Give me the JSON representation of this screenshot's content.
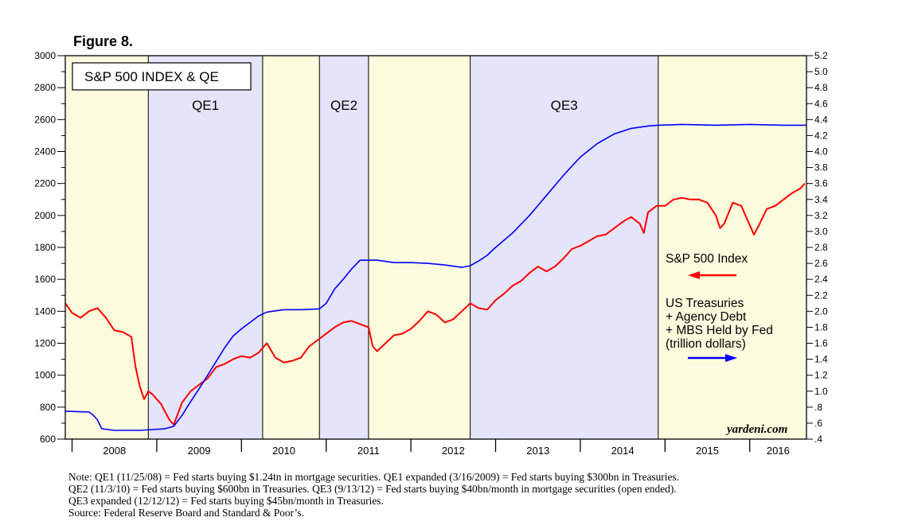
{
  "figure_label": "Figure 8.",
  "chart_data": {
    "type": "line",
    "title": "S&P 500 INDEX & QE",
    "x_range": [
      2007.92,
      2016.67
    ],
    "x_tick_labels": [
      "2008",
      "2009",
      "2010",
      "2011",
      "2012",
      "2013",
      "2014",
      "2015",
      "2016"
    ],
    "left_axis": {
      "min": 600,
      "max": 3000,
      "ticks": [
        "600",
        "800",
        "1000",
        "1200",
        "1400",
        "1600",
        "1800",
        "2000",
        "2200",
        "2400",
        "2600",
        "2800",
        "3000"
      ]
    },
    "right_axis": {
      "min": 0.4,
      "max": 5.2,
      "ticks": [
        ".4",
        ".6",
        ".8",
        "1.0",
        "1.2",
        "1.4",
        "1.6",
        "1.8",
        "2.0",
        "2.2",
        "2.4",
        "2.6",
        "2.8",
        "3.0",
        "3.2",
        "3.4",
        "3.6",
        "3.8",
        "4.0",
        "4.2",
        "4.4",
        "4.6",
        "4.8",
        "5.0",
        "5.2"
      ]
    },
    "periods": [
      {
        "label": "",
        "start": 2007.92,
        "end": 2008.9,
        "fill": "#fdfbdd"
      },
      {
        "label": "QE1",
        "start": 2008.9,
        "end": 2010.25,
        "fill": "#e4e4fa"
      },
      {
        "label": "",
        "start": 2010.25,
        "end": 2010.92,
        "fill": "#fdfbdd"
      },
      {
        "label": "QE2",
        "start": 2010.92,
        "end": 2011.5,
        "fill": "#e4e4fa"
      },
      {
        "label": "",
        "start": 2011.5,
        "end": 2012.7,
        "fill": "#fdfbdd"
      },
      {
        "label": "QE3",
        "start": 2012.7,
        "end": 2014.92,
        "fill": "#e4e4fa"
      },
      {
        "label": "",
        "start": 2014.92,
        "end": 2016.67,
        "fill": "#fdfbdd"
      }
    ],
    "series": [
      {
        "name": "S&P 500 Index",
        "axis": "left",
        "color": "#ff0000",
        "x": [
          2007.92,
          2008.0,
          2008.1,
          2008.2,
          2008.3,
          2008.4,
          2008.5,
          2008.6,
          2008.7,
          2008.75,
          2008.8,
          2008.85,
          2008.9,
          2008.95,
          2009.05,
          2009.15,
          2009.2,
          2009.3,
          2009.4,
          2009.5,
          2009.6,
          2009.7,
          2009.8,
          2009.9,
          2010.0,
          2010.1,
          2010.2,
          2010.3,
          2010.4,
          2010.5,
          2010.6,
          2010.7,
          2010.8,
          2010.9,
          2011.0,
          2011.1,
          2011.2,
          2011.3,
          2011.4,
          2011.5,
          2011.55,
          2011.6,
          2011.7,
          2011.8,
          2011.9,
          2012.0,
          2012.1,
          2012.2,
          2012.3,
          2012.4,
          2012.5,
          2012.6,
          2012.7,
          2012.8,
          2012.9,
          2013.0,
          2013.1,
          2013.2,
          2013.3,
          2013.4,
          2013.5,
          2013.6,
          2013.7,
          2013.8,
          2013.9,
          2014.0,
          2014.1,
          2014.2,
          2014.3,
          2014.4,
          2014.5,
          2014.6,
          2014.7,
          2014.75,
          2014.8,
          2014.9,
          2015.0,
          2015.1,
          2015.2,
          2015.3,
          2015.4,
          2015.5,
          2015.6,
          2015.65,
          2015.7,
          2015.8,
          2015.9,
          2016.0,
          2016.05,
          2016.1,
          2016.2,
          2016.3,
          2016.4,
          2016.5,
          2016.6,
          2016.65
        ],
        "values": [
          1450,
          1390,
          1360,
          1400,
          1420,
          1360,
          1280,
          1270,
          1240,
          1050,
          930,
          850,
          900,
          880,
          820,
          720,
          690,
          830,
          900,
          940,
          980,
          1050,
          1070,
          1100,
          1120,
          1110,
          1140,
          1200,
          1110,
          1080,
          1090,
          1110,
          1180,
          1220,
          1260,
          1300,
          1330,
          1340,
          1320,
          1300,
          1180,
          1150,
          1200,
          1250,
          1260,
          1290,
          1340,
          1400,
          1380,
          1330,
          1350,
          1400,
          1450,
          1420,
          1410,
          1470,
          1510,
          1560,
          1590,
          1640,
          1680,
          1650,
          1680,
          1730,
          1790,
          1810,
          1840,
          1870,
          1880,
          1920,
          1960,
          1990,
          1950,
          1890,
          2020,
          2060,
          2060,
          2100,
          2110,
          2100,
          2100,
          2080,
          2000,
          1920,
          1950,
          2080,
          2060,
          1940,
          1880,
          1930,
          2040,
          2060,
          2100,
          2140,
          2170,
          2200
        ],
        "legend": "S&P 500 Index"
      },
      {
        "name": "US Treasuries + Agency Debt + MBS Held by Fed",
        "axis": "right",
        "color": "#0000ff",
        "x": [
          2007.92,
          2008.2,
          2008.25,
          2008.3,
          2008.35,
          2008.5,
          2008.8,
          2008.95,
          2009.1,
          2009.2,
          2009.3,
          2009.4,
          2009.5,
          2009.6,
          2009.7,
          2009.8,
          2009.9,
          2010.0,
          2010.1,
          2010.2,
          2010.3,
          2010.5,
          2010.7,
          2010.92,
          2011.0,
          2011.1,
          2011.2,
          2011.3,
          2011.4,
          2011.5,
          2011.6,
          2011.8,
          2012.0,
          2012.2,
          2012.4,
          2012.6,
          2012.7,
          2012.8,
          2012.9,
          2013.0,
          2013.2,
          2013.4,
          2013.6,
          2013.8,
          2014.0,
          2014.2,
          2014.4,
          2014.6,
          2014.8,
          2014.92,
          2015.2,
          2015.6,
          2016.0,
          2016.4,
          2016.67
        ],
        "values": [
          0.75,
          0.74,
          0.7,
          0.64,
          0.53,
          0.51,
          0.51,
          0.52,
          0.53,
          0.56,
          0.7,
          0.87,
          1.03,
          1.2,
          1.37,
          1.54,
          1.69,
          1.78,
          1.86,
          1.94,
          1.99,
          2.02,
          2.02,
          2.03,
          2.1,
          2.28,
          2.4,
          2.53,
          2.64,
          2.64,
          2.64,
          2.61,
          2.61,
          2.6,
          2.58,
          2.55,
          2.57,
          2.63,
          2.7,
          2.8,
          2.98,
          3.2,
          3.45,
          3.7,
          3.93,
          4.1,
          4.22,
          4.29,
          4.32,
          4.33,
          4.34,
          4.33,
          4.34,
          4.33,
          4.33
        ],
        "legend": "US Treasuries\n+ Agency Debt\n+ MBS Held by Fed\n(trillion dollars)"
      }
    ],
    "legend_sp500": "S&P 500 Index",
    "legend_fed": [
      "US Treasuries",
      "+ Agency Debt",
      "+ MBS Held by Fed",
      "(trillion dollars)"
    ]
  },
  "brand": "yardeni.com",
  "notes": [
    "Note: QE1 (11/25/08) = Fed starts buying $1.24tn in mortgage securities. QE1 expanded (3/16/2009) = Fed starts buying $300bn in Treasuries.",
    "QE2 (11/3/10) = Fed starts buying $600bn in Treasuries. QE3 (9/13/12) = Fed starts buying $40bn/month in mortgage securities (open ended).",
    "QE3 expanded (12/12/12) = Fed starts buying $45bn/month in Treasuries.",
    "Source: Federal Reserve Board and Standard & Poor’s."
  ]
}
